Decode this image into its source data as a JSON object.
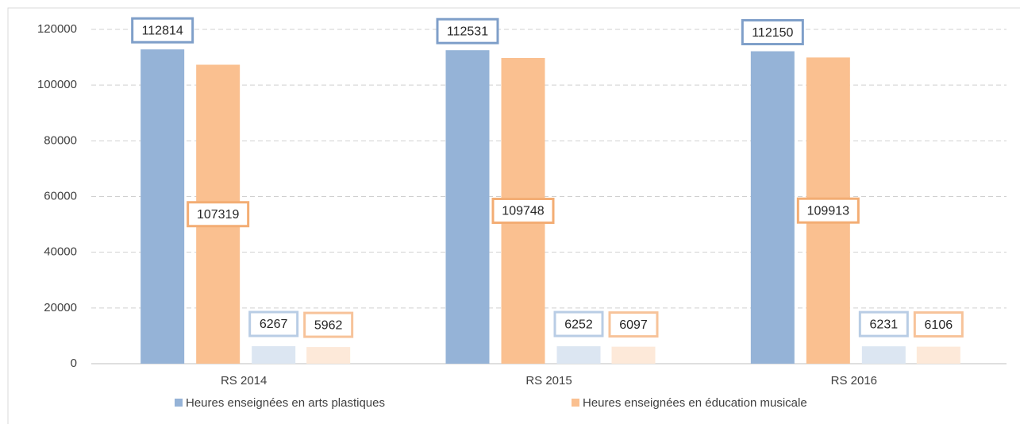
{
  "chart_data": {
    "type": "bar",
    "categories": [
      "RS 2014",
      "RS 2015",
      "RS 2016"
    ],
    "series": [
      {
        "name": "Heures enseignées en arts plastiques",
        "color": "#95b3d7",
        "values": [
          112814,
          112531,
          112150
        ]
      },
      {
        "name": "Heures enseignées en éducation musicale",
        "color": "#fac090",
        "values": [
          107319,
          109748,
          109913
        ]
      },
      {
        "color": "#dce6f2",
        "values": [
          6267,
          6252,
          6231
        ]
      },
      {
        "color": "#fde9d9",
        "values": [
          5962,
          6097,
          6106
        ]
      }
    ],
    "ylim": [
      0,
      120000
    ],
    "yticks": [
      0,
      20000,
      40000,
      60000,
      80000,
      100000,
      120000
    ],
    "grid": true,
    "legend": "bottom"
  }
}
